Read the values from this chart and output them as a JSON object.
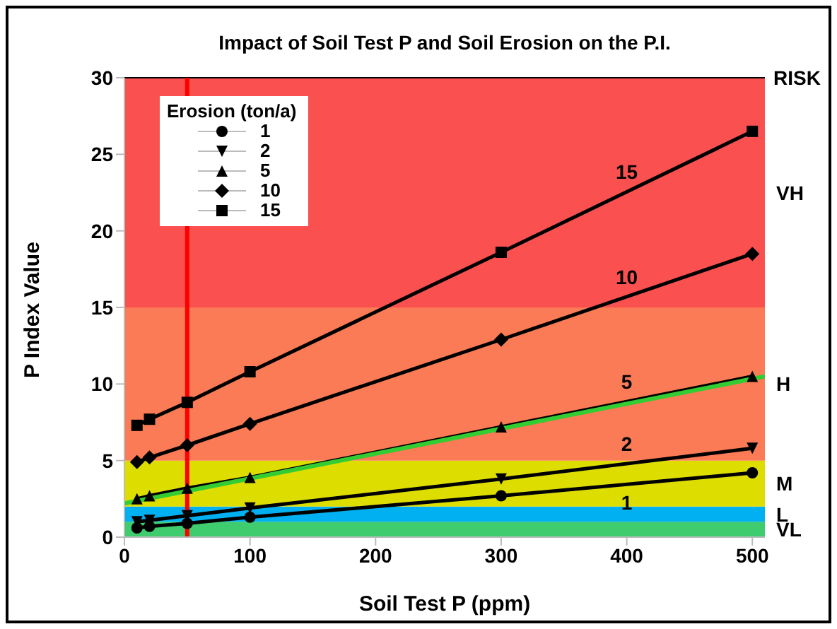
{
  "chart_data": {
    "type": "line",
    "title": "Impact of Soil Test P and Soil Erosion on the P.I.",
    "xlabel": "Soil Test P (ppm)",
    "ylabel": "P Index Value",
    "legend_title": "Erosion (ton/a)",
    "legend": "top left",
    "line_style": "solid",
    "xlim": [
      0,
      510
    ],
    "xticks": [
      0,
      100,
      200,
      300,
      400,
      500
    ],
    "ylim": [
      0,
      30
    ],
    "yticks": [
      0,
      5,
      10,
      15,
      20,
      25,
      30
    ],
    "series": [
      {
        "name": "1",
        "color": "#000000",
        "marker": "circle",
        "x": [
          10,
          20,
          50,
          100,
          300,
          500
        ],
        "values": [
          0.6,
          0.7,
          0.9,
          1.3,
          2.7,
          4.2
        ]
      },
      {
        "name": "2",
        "color": "#000000",
        "marker": "triangle-down",
        "x": [
          10,
          20,
          50,
          100,
          300,
          500
        ],
        "values": [
          1.0,
          1.1,
          1.4,
          1.9,
          3.8,
          5.8
        ]
      },
      {
        "name": "5",
        "color": "#000000",
        "marker": "triangle",
        "x": [
          10,
          20,
          50,
          100,
          300,
          500
        ],
        "values": [
          2.5,
          2.7,
          3.2,
          3.9,
          7.2,
          10.5
        ]
      },
      {
        "name": "10",
        "color": "#000000",
        "marker": "diamond",
        "x": [
          10,
          20,
          50,
          100,
          300,
          500
        ],
        "values": [
          4.9,
          5.2,
          6.0,
          7.4,
          12.9,
          18.5
        ]
      },
      {
        "name": "15",
        "color": "#000000",
        "marker": "square",
        "x": [
          10,
          20,
          50,
          100,
          300,
          500
        ],
        "values": [
          7.3,
          7.7,
          8.8,
          10.8,
          18.6,
          26.5
        ]
      },
      {
        "type": "line",
        "color": "#33cc33",
        "marker": "none",
        "x": [
          0,
          510
        ],
        "values": [
          2.2,
          10.5
        ]
      }
    ],
    "bands": [
      {
        "axis": "y",
        "from": 0,
        "to": 1,
        "label": "VL",
        "color": "#3ecc6e"
      },
      {
        "axis": "y",
        "from": 1,
        "to": 2,
        "label": "L",
        "color": "#00b0f0"
      },
      {
        "axis": "y",
        "from": 2,
        "to": 5,
        "label": "M",
        "color": "#dddd00"
      },
      {
        "axis": "y",
        "from": 5,
        "to": 15,
        "label": "H",
        "color": "#fa7b55"
      },
      {
        "axis": "y",
        "from": 15,
        "to": 30,
        "label": "VH",
        "color": "#fa5050"
      }
    ],
    "ref_lines": [
      {
        "axis": "x",
        "value": 50,
        "color": "#ff0000"
      }
    ],
    "annotations": [
      "RISK"
    ]
  }
}
